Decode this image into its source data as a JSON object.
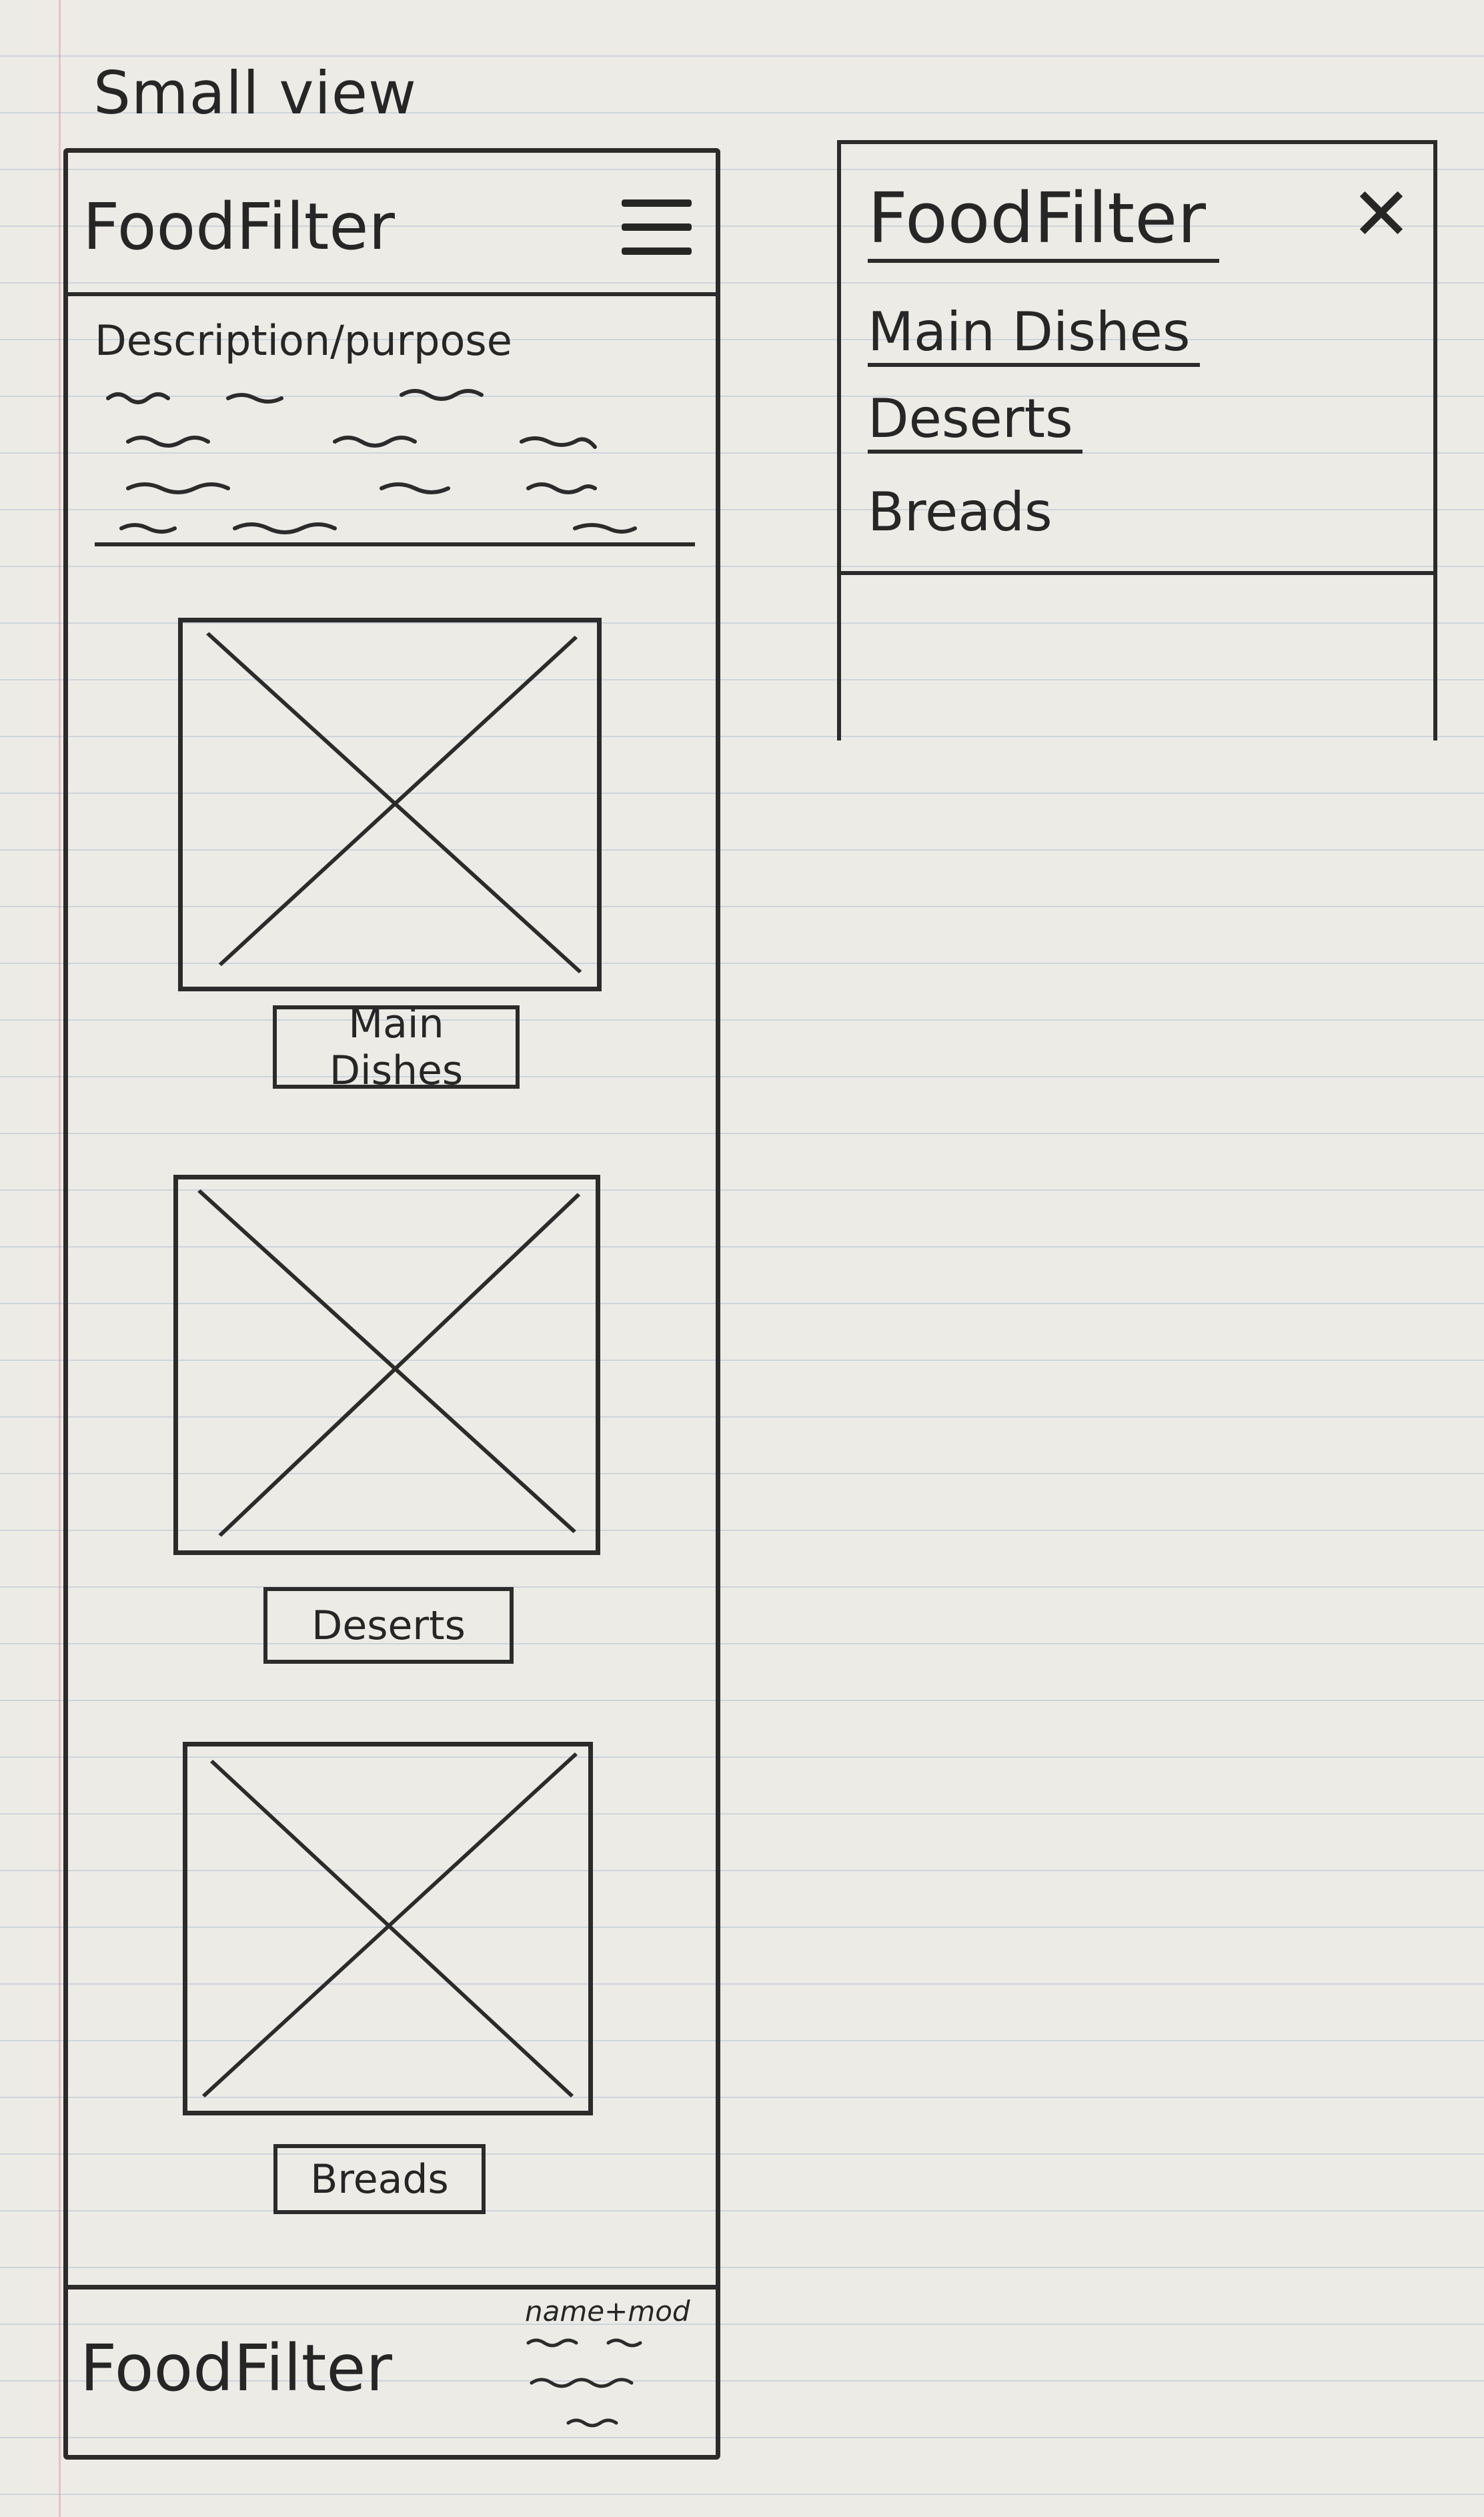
{
  "page": {
    "heading": "Small view"
  },
  "small_view": {
    "header": {
      "title": "FoodFilter",
      "menu_icon": "hamburger-menu-icon"
    },
    "description": {
      "label": "Description/purpose"
    },
    "categories": [
      {
        "label": "Main Dishes",
        "image_icon": "image-placeholder-icon"
      },
      {
        "label": "Deserts",
        "image_icon": "image-placeholder-icon"
      },
      {
        "label": "Breads",
        "image_icon": "image-placeholder-icon"
      }
    ],
    "footer": {
      "title": "FoodFilter",
      "credit": "name+mod"
    }
  },
  "menu_open": {
    "title": "FoodFilter",
    "close_icon": "close-icon",
    "items": [
      "Main Dishes",
      "Deserts",
      "Breads"
    ]
  }
}
